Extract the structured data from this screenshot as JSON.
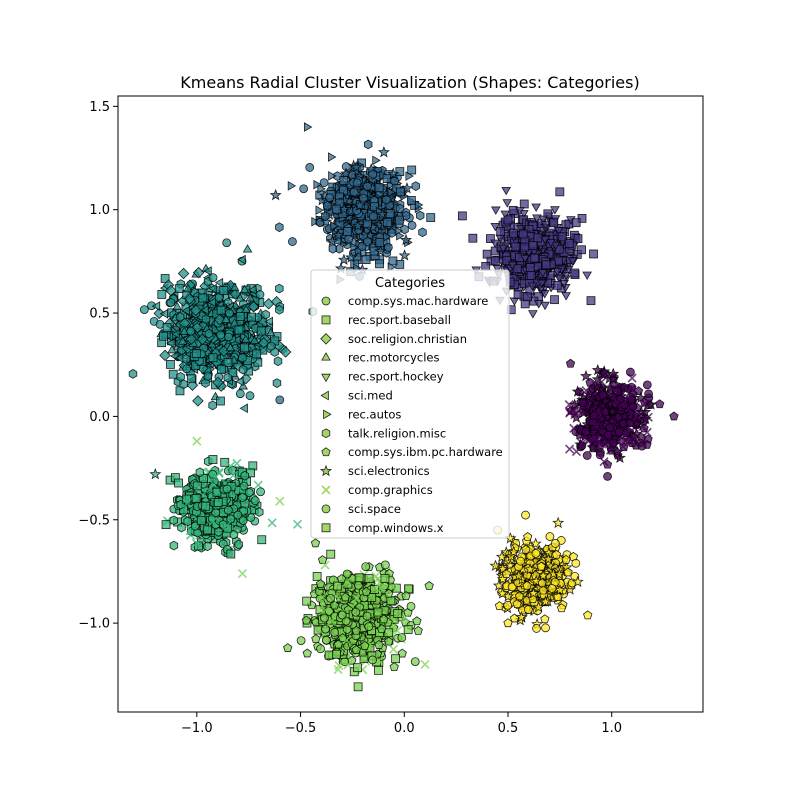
{
  "chart_data": {
    "type": "scatter",
    "title": "Kmeans Radial Cluster Visualization (Shapes: Categories)",
    "xlabel": "",
    "ylabel": "",
    "xlim": [
      -1.38,
      1.44
    ],
    "ylim": [
      -1.43,
      1.55
    ],
    "xticks": [
      -1.0,
      -0.5,
      0.0,
      0.5,
      1.0
    ],
    "xtick_labels": [
      "−1.0",
      "−0.5",
      "0.0",
      "0.5",
      "1.0"
    ],
    "yticks": [
      -1.0,
      -0.5,
      0.0,
      0.5,
      1.0,
      1.5
    ],
    "ytick_labels": [
      "−1.0",
      "−0.5",
      "0.0",
      "0.5",
      "1.0",
      "1.5"
    ],
    "grid": false,
    "legend": {
      "title": "Categories",
      "placement": "center",
      "entries": [
        {
          "label": "comp.sys.mac.hardware",
          "marker": "circle"
        },
        {
          "label": "rec.sport.baseball",
          "marker": "square"
        },
        {
          "label": "soc.religion.christian",
          "marker": "diamond"
        },
        {
          "label": "rec.motorcycles",
          "marker": "triangle-up"
        },
        {
          "label": "rec.sport.hockey",
          "marker": "triangle-down"
        },
        {
          "label": "sci.med",
          "marker": "triangle-left"
        },
        {
          "label": "rec.autos",
          "marker": "triangle-right"
        },
        {
          "label": "talk.religion.misc",
          "marker": "hexagon"
        },
        {
          "label": "comp.sys.ibm.pc.hardware",
          "marker": "pentagon"
        },
        {
          "label": "sci.electronics",
          "marker": "star"
        },
        {
          "label": "comp.graphics",
          "marker": "x"
        },
        {
          "label": "sci.space",
          "marker": "circle"
        },
        {
          "label": "comp.windows.x",
          "marker": "square"
        }
      ]
    },
    "legend_marker_color": "#a5d46a",
    "clusters": [
      {
        "center": [
          -0.2,
          1.0
        ],
        "spread": 0.1,
        "color": "#31688e",
        "count": 700,
        "markers": [
          "circle",
          "square",
          "triangle-right",
          "hexagon",
          "star"
        ]
      },
      {
        "center": [
          0.63,
          0.78
        ],
        "spread": 0.09,
        "color": "#443983",
        "count": 600,
        "markers": [
          "triangle-down",
          "square"
        ]
      },
      {
        "center": [
          -0.9,
          0.41
        ],
        "spread": 0.12,
        "color": "#21918c",
        "count": 800,
        "markers": [
          "hexagon",
          "triangle-left",
          "diamond",
          "triangle-up",
          "circle",
          "square"
        ]
      },
      {
        "center": [
          0.99,
          0.0
        ],
        "spread": 0.08,
        "color": "#440154",
        "count": 500,
        "markers": [
          "pentagon",
          "circle",
          "x",
          "star"
        ]
      },
      {
        "center": [
          -0.9,
          -0.44
        ],
        "spread": 0.09,
        "color": "#35b779",
        "count": 500,
        "markers": [
          "circle",
          "hexagon",
          "square",
          "x"
        ]
      },
      {
        "center": [
          -0.23,
          -0.97
        ],
        "spread": 0.1,
        "color": "#7ad151",
        "count": 700,
        "markers": [
          "square",
          "pentagon",
          "x",
          "circle"
        ]
      },
      {
        "center": [
          0.63,
          -0.78
        ],
        "spread": 0.08,
        "color": "#fde725",
        "count": 400,
        "markers": [
          "circle",
          "pentagon",
          "star"
        ]
      }
    ],
    "outliers": [
      {
        "x": -0.47,
        "y": 1.4,
        "color": "#31688e",
        "marker": "triangle-right"
      },
      {
        "x": 0.28,
        "y": 0.97,
        "color": "#443983",
        "marker": "square"
      },
      {
        "x": -0.62,
        "y": 1.07,
        "color": "#31688e",
        "marker": "star"
      },
      {
        "x": -0.6,
        "y": 0.08,
        "color": "#31688e",
        "marker": "circle"
      },
      {
        "x": -1.0,
        "y": -0.12,
        "color": "#7ad151",
        "marker": "x"
      },
      {
        "x": -0.6,
        "y": -0.41,
        "color": "#7ad151",
        "marker": "x"
      },
      {
        "x": -0.78,
        "y": -0.76,
        "color": "#7ad151",
        "marker": "x"
      },
      {
        "x": -1.2,
        "y": -0.28,
        "color": "#35b779",
        "marker": "star"
      },
      {
        "x": 0.45,
        "y": -0.55,
        "color": "#fde725",
        "marker": "circle"
      },
      {
        "x": 0.12,
        "y": -0.82,
        "color": "#7ad151",
        "marker": "pentagon"
      },
      {
        "x": 0.1,
        "y": -1.2,
        "color": "#7ad151",
        "marker": "x"
      },
      {
        "x": 0.5,
        "y": -1.0,
        "color": "#fde725",
        "marker": "pentagon"
      },
      {
        "x": 1.3,
        "y": 0.0,
        "color": "#440154",
        "marker": "pentagon"
      },
      {
        "x": 0.83,
        "y": -0.17,
        "color": "#440154",
        "marker": "x"
      },
      {
        "x": 0.98,
        "y": -0.29,
        "color": "#440154",
        "marker": "circle"
      },
      {
        "x": 0.62,
        "y": 0.5,
        "color": "#443983",
        "marker": "triangle-down"
      },
      {
        "x": 0.9,
        "y": 0.56,
        "color": "#443983",
        "marker": "square"
      }
    ]
  }
}
